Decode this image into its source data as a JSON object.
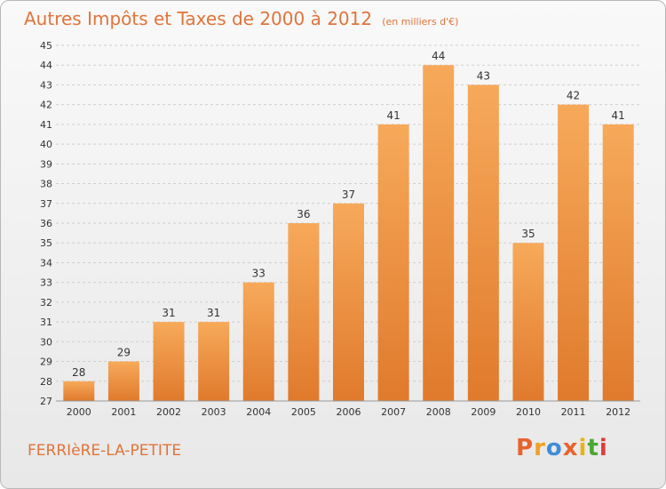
{
  "header": {
    "title": "Autres Impôts et Taxes de 2000 à 2012",
    "subtitle": "(en milliers d'€)"
  },
  "footer": {
    "commune": "FERRIèRE-LA-PETITE",
    "logo": "Proxiti"
  },
  "colors": {
    "title": "#e0743a",
    "bar_top": "#f7a95a",
    "bar_bottom": "#e07a2c",
    "grid": "#cfcfcf",
    "axis_text": "#333333",
    "logo": [
      "#e8632c",
      "#f0a022",
      "#3d8ed8",
      "#e8632c",
      "#e8b21a",
      "#4aa832",
      "#e03a3a"
    ]
  },
  "chart_data": {
    "type": "bar",
    "title": "Autres Impôts et Taxes de 2000 à 2012",
    "subtitle": "(en milliers d'€)",
    "xlabel": "",
    "ylabel": "",
    "categories": [
      "2000",
      "2001",
      "2002",
      "2003",
      "2004",
      "2005",
      "2006",
      "2007",
      "2008",
      "2009",
      "2010",
      "2011",
      "2012"
    ],
    "values": [
      28,
      29,
      31,
      31,
      33,
      36,
      37,
      41,
      44,
      43,
      35,
      42,
      41
    ],
    "data_labels": [
      "28",
      "29",
      "31",
      "31",
      "33",
      "36",
      "37",
      "41",
      "44",
      "43",
      "35",
      "42",
      "41"
    ],
    "ylim": [
      27,
      45
    ],
    "yticks": [
      "27",
      "28",
      "29",
      "30",
      "31",
      "32",
      "33",
      "34",
      "35",
      "36",
      "37",
      "38",
      "39",
      "40",
      "41",
      "42",
      "43",
      "44",
      "45"
    ],
    "grid": true,
    "legend": "none"
  }
}
